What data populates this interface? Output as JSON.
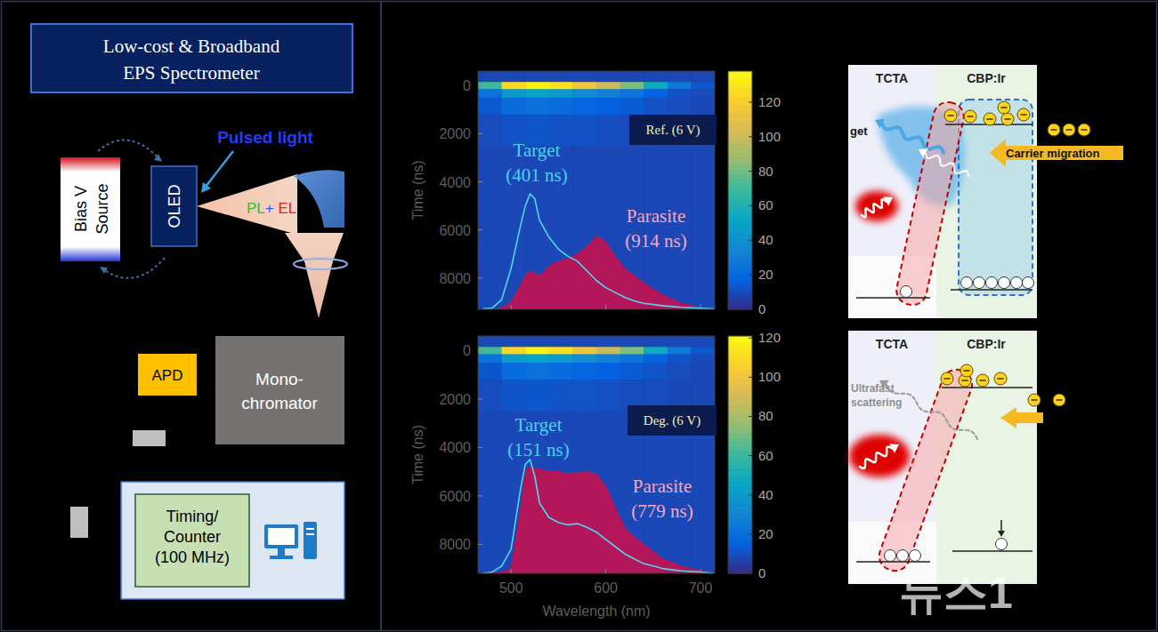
{
  "setup": {
    "title": [
      "Low-cost & Broadband",
      "EPS Spectrometer"
    ],
    "bias_source": "Bias V Source",
    "oled": "OLED",
    "pulsed_light": "Pulsed light",
    "pl": "PL",
    "plus": "+",
    "el": " EL",
    "apd": "APD",
    "monochromator": [
      "Mono-",
      "chromator"
    ],
    "counter": [
      "Timing/",
      "Counter",
      "(100 MHz)"
    ]
  },
  "chart_data": [
    {
      "type": "heatmap",
      "annotation": "Ref. (6 V)",
      "y_label": "Time (ns)",
      "tick_labels": "y",
      "xlim": [
        465,
        715
      ],
      "xticks": [
        500,
        600,
        700
      ],
      "ylim": [
        9300,
        -600
      ],
      "yticks": [
        0,
        2000,
        4000,
        6000,
        8000
      ],
      "heatmap": {
        "x_edges": [
          465,
          490,
          515,
          540,
          565,
          590,
          615,
          640,
          665,
          690,
          715
        ],
        "y_edges": [
          -600,
          -150,
          150,
          500,
          1200,
          2500,
          9300
        ],
        "cells": [
          [
            9,
            9,
            9,
            9,
            9,
            9,
            9,
            9,
            9,
            9
          ],
          [
            70,
            125,
            135,
            128,
            115,
            100,
            82,
            55,
            28,
            14
          ],
          [
            25,
            45,
            50,
            45,
            38,
            32,
            26,
            18,
            12,
            10
          ],
          [
            14,
            22,
            24,
            22,
            19,
            17,
            15,
            12,
            10,
            9
          ],
          [
            10,
            12,
            13,
            12,
            12,
            11,
            10,
            10,
            9,
            9
          ],
          [
            9,
            9,
            9,
            9,
            9,
            9,
            9,
            9,
            9,
            9
          ]
        ]
      },
      "color_range": [
        0,
        138
      ],
      "color_ticks": [
        0,
        20,
        40,
        60,
        80,
        100,
        120
      ],
      "x": [
        470,
        480,
        490,
        500,
        510,
        515,
        520,
        525,
        530,
        540,
        550,
        560,
        570,
        580,
        590,
        600,
        610,
        620,
        630,
        640,
        660,
        680,
        700,
        715
      ],
      "series": [
        {
          "name": "Target",
          "lifetime_label": "(401 ns)",
          "type": "line",
          "color": "#4fd6f0",
          "values": [
            9280,
            9250,
            8900,
            7600,
            5800,
            5000,
            4500,
            4700,
            5600,
            6300,
            6800,
            7100,
            7300,
            7700,
            8100,
            8400,
            8600,
            8800,
            8950,
            9050,
            9150,
            9220,
            9260,
            9280
          ]
        },
        {
          "name": "Parasite",
          "lifetime_label": "(914 ns)",
          "type": "area",
          "color": "#c8104c",
          "values": [
            9300,
            9300,
            9250,
            9000,
            8300,
            7900,
            7700,
            7800,
            7900,
            7500,
            7300,
            7200,
            7000,
            6700,
            6250,
            6500,
            7100,
            7600,
            7900,
            8200,
            8700,
            9050,
            9250,
            9300
          ]
        }
      ]
    },
    {
      "type": "heatmap",
      "annotation": "Deg. (6 V)",
      "y_label": "Time (ns)",
      "x_label": "Wavelength (nm)",
      "tick_labels": true,
      "xlim": [
        465,
        715
      ],
      "xticks": [
        500,
        600,
        700
      ],
      "ylim": [
        9200,
        -600
      ],
      "yticks": [
        0,
        2000,
        4000,
        6000,
        8000
      ],
      "heatmap": {
        "x_edges": [
          465,
          490,
          515,
          540,
          565,
          590,
          615,
          640,
          665,
          690,
          715
        ],
        "y_edges": [
          -600,
          -150,
          150,
          500,
          1200,
          2500,
          9200
        ],
        "cells": [
          [
            8,
            8,
            8,
            8,
            8,
            8,
            8,
            8,
            8,
            8
          ],
          [
            62,
            108,
            118,
            112,
            100,
            88,
            72,
            48,
            25,
            12
          ],
          [
            22,
            40,
            44,
            40,
            34,
            28,
            23,
            16,
            11,
            9
          ],
          [
            12,
            19,
            21,
            19,
            17,
            15,
            13,
            11,
            9,
            8
          ],
          [
            9,
            11,
            12,
            11,
            11,
            10,
            9,
            9,
            8,
            8
          ],
          [
            8,
            8,
            8,
            8,
            8,
            8,
            8,
            8,
            8,
            8
          ]
        ]
      },
      "color_range": [
        0,
        121
      ],
      "color_ticks": [
        0,
        20,
        40,
        60,
        80,
        100,
        120
      ],
      "x": [
        470,
        480,
        490,
        500,
        510,
        515,
        520,
        525,
        530,
        540,
        550,
        560,
        570,
        580,
        590,
        600,
        610,
        620,
        630,
        640,
        660,
        680,
        700,
        715
      ],
      "series": [
        {
          "name": "Target",
          "lifetime_label": "(151 ns)",
          "type": "line",
          "color": "#4fd6f0",
          "values": [
            9200,
            9150,
            8900,
            8200,
            5700,
            4700,
            4500,
            5200,
            6300,
            6900,
            7100,
            7200,
            7150,
            7300,
            7500,
            7800,
            8100,
            8400,
            8600,
            8800,
            9000,
            9100,
            9150,
            9200
          ]
        },
        {
          "name": "Parasite",
          "lifetime_label": "(779 ns)",
          "type": "area",
          "color": "#c8104c",
          "values": [
            9200,
            9200,
            9150,
            9000,
            6500,
            5000,
            4800,
            4850,
            4900,
            5000,
            5000,
            5100,
            5050,
            5000,
            5100,
            5600,
            6500,
            7300,
            7700,
            8000,
            8600,
            8900,
            9100,
            9200
          ]
        }
      ]
    }
  ],
  "band_diagrams": [
    {
      "left_layer": "TCTA",
      "right_layer": "CBP:Ir",
      "emission_label": "get",
      "arrow_label": "Carrier migration"
    },
    {
      "left_layer": "TCTA",
      "right_layer": "CBP:Ir",
      "scatter_label": "Ultrafast scattering"
    }
  ],
  "watermark": "뉴스1"
}
